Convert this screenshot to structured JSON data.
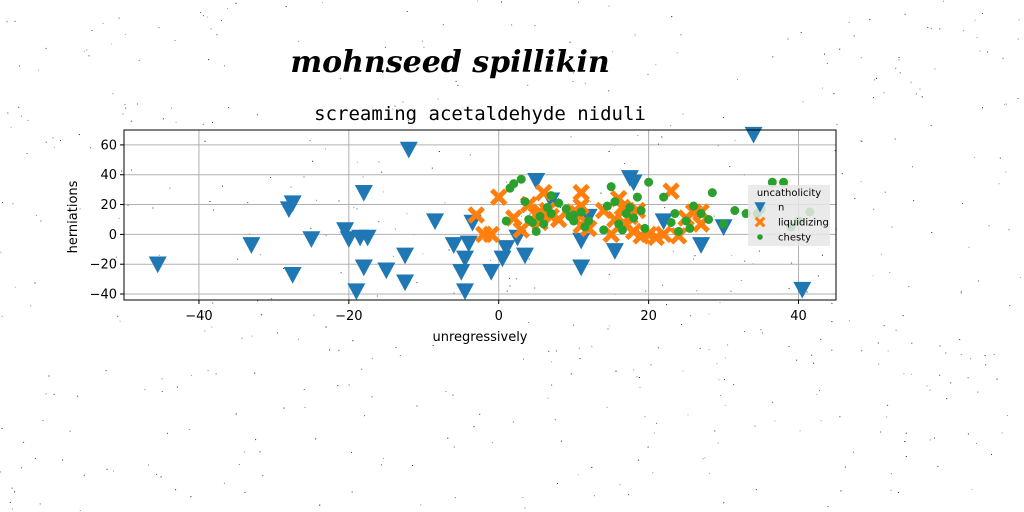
{
  "page": {
    "handwritten_heading": "mohnseed spillikin"
  },
  "chart_data": {
    "type": "scatter",
    "title": "screaming acetaldehyde niduli",
    "xlabel": "unregressively",
    "ylabel": "herniations",
    "xlim": [
      -50,
      45
    ],
    "ylim": [
      -44,
      70
    ],
    "xticks": [
      -40,
      -20,
      0,
      20,
      40
    ],
    "yticks": [
      -40,
      -20,
      0,
      20,
      40,
      60
    ],
    "grid": true,
    "legend": {
      "title": "uncatholicity",
      "placement": "right"
    },
    "series": [
      {
        "name": "n",
        "marker": "triangle-down",
        "color": "#1f77b4",
        "points": [
          [
            -45.5,
            -20
          ],
          [
            -33,
            -7
          ],
          [
            -28,
            17
          ],
          [
            -27.5,
            21
          ],
          [
            -27.5,
            -27
          ],
          [
            -25,
            -3
          ],
          [
            -20.5,
            3
          ],
          [
            -20,
            -3
          ],
          [
            -19,
            -38
          ],
          [
            -18.5,
            -2
          ],
          [
            -18,
            -22
          ],
          [
            -18,
            28
          ],
          [
            -17.5,
            -2
          ],
          [
            -15,
            -24
          ],
          [
            -12.5,
            -32
          ],
          [
            -12.5,
            -14
          ],
          [
            -12,
            57
          ],
          [
            -8.5,
            9
          ],
          [
            -6,
            -7
          ],
          [
            -5,
            -25
          ],
          [
            -4.5,
            -38
          ],
          [
            -4.5,
            -16
          ],
          [
            -4,
            -6
          ],
          [
            -3.5,
            8
          ],
          [
            -1,
            -25
          ],
          [
            0.5,
            -16
          ],
          [
            1,
            -9
          ],
          [
            2.5,
            -2
          ],
          [
            3.5,
            -14
          ],
          [
            5,
            36
          ],
          [
            7,
            23
          ],
          [
            11,
            -4
          ],
          [
            11,
            -22
          ],
          [
            12,
            12
          ],
          [
            15.5,
            -11
          ],
          [
            17.5,
            38
          ],
          [
            18,
            35
          ],
          [
            22,
            9
          ],
          [
            27,
            -7
          ],
          [
            30,
            5
          ],
          [
            34,
            67
          ],
          [
            40.5,
            -37
          ]
        ]
      },
      {
        "name": "liquidizing",
        "marker": "x",
        "color": "#ff7f0e",
        "points": [
          [
            -3,
            13
          ],
          [
            -2,
            0
          ],
          [
            -1,
            0
          ],
          [
            0,
            25
          ],
          [
            2,
            11
          ],
          [
            3,
            3
          ],
          [
            4,
            20
          ],
          [
            5,
            13
          ],
          [
            5.5,
            15
          ],
          [
            5.5,
            8
          ],
          [
            6,
            28
          ],
          [
            6.5,
            16
          ],
          [
            7,
            12
          ],
          [
            8,
            10
          ],
          [
            10,
            15
          ],
          [
            10.5,
            14
          ],
          [
            11,
            28
          ],
          [
            11,
            19
          ],
          [
            11,
            6
          ],
          [
            12,
            4
          ],
          [
            14,
            16
          ],
          [
            15,
            0
          ],
          [
            15.5,
            10
          ],
          [
            16,
            24
          ],
          [
            16.5,
            18
          ],
          [
            17,
            6
          ],
          [
            17.5,
            12
          ],
          [
            18,
            2
          ],
          [
            18.5,
            16
          ],
          [
            19,
            -1
          ],
          [
            20,
            0
          ],
          [
            21,
            -2
          ],
          [
            22,
            0
          ],
          [
            23,
            29
          ],
          [
            24,
            -1
          ],
          [
            25,
            11
          ],
          [
            26,
            15
          ],
          [
            27,
            7
          ],
          [
            27,
            15
          ]
        ]
      },
      {
        "name": "chesty",
        "marker": "circle",
        "color": "#2ca02c",
        "points": [
          [
            1,
            9
          ],
          [
            1.5,
            31
          ],
          [
            2,
            34
          ],
          [
            3,
            37
          ],
          [
            3.5,
            22
          ],
          [
            4,
            10
          ],
          [
            4.5,
            8
          ],
          [
            5,
            2
          ],
          [
            5.5,
            12
          ],
          [
            6,
            7
          ],
          [
            6.5,
            18
          ],
          [
            7,
            14
          ],
          [
            7,
            26
          ],
          [
            8,
            21
          ],
          [
            9,
            17
          ],
          [
            9.5,
            12
          ],
          [
            10,
            13
          ],
          [
            10,
            9
          ],
          [
            11,
            15
          ],
          [
            11.5,
            5
          ],
          [
            12,
            9
          ],
          [
            14,
            3
          ],
          [
            14.5,
            19
          ],
          [
            15,
            32
          ],
          [
            15.5,
            22
          ],
          [
            16,
            7
          ],
          [
            16.5,
            3
          ],
          [
            17,
            14
          ],
          [
            17.5,
            18
          ],
          [
            18,
            11
          ],
          [
            18.5,
            25
          ],
          [
            19,
            16
          ],
          [
            19.5,
            4
          ],
          [
            20,
            35
          ],
          [
            22,
            25
          ],
          [
            23,
            8
          ],
          [
            23.5,
            14
          ],
          [
            24,
            2
          ],
          [
            25,
            9
          ],
          [
            25.5,
            4
          ],
          [
            26,
            19
          ],
          [
            27,
            14
          ],
          [
            28,
            10
          ],
          [
            28.5,
            28
          ],
          [
            30,
            7
          ],
          [
            31.5,
            16
          ],
          [
            33,
            14
          ],
          [
            34.5,
            14
          ],
          [
            35,
            17
          ],
          [
            36.5,
            35
          ],
          [
            38,
            35
          ],
          [
            39,
            5
          ],
          [
            40,
            9
          ],
          [
            41.5,
            15
          ]
        ]
      }
    ]
  }
}
